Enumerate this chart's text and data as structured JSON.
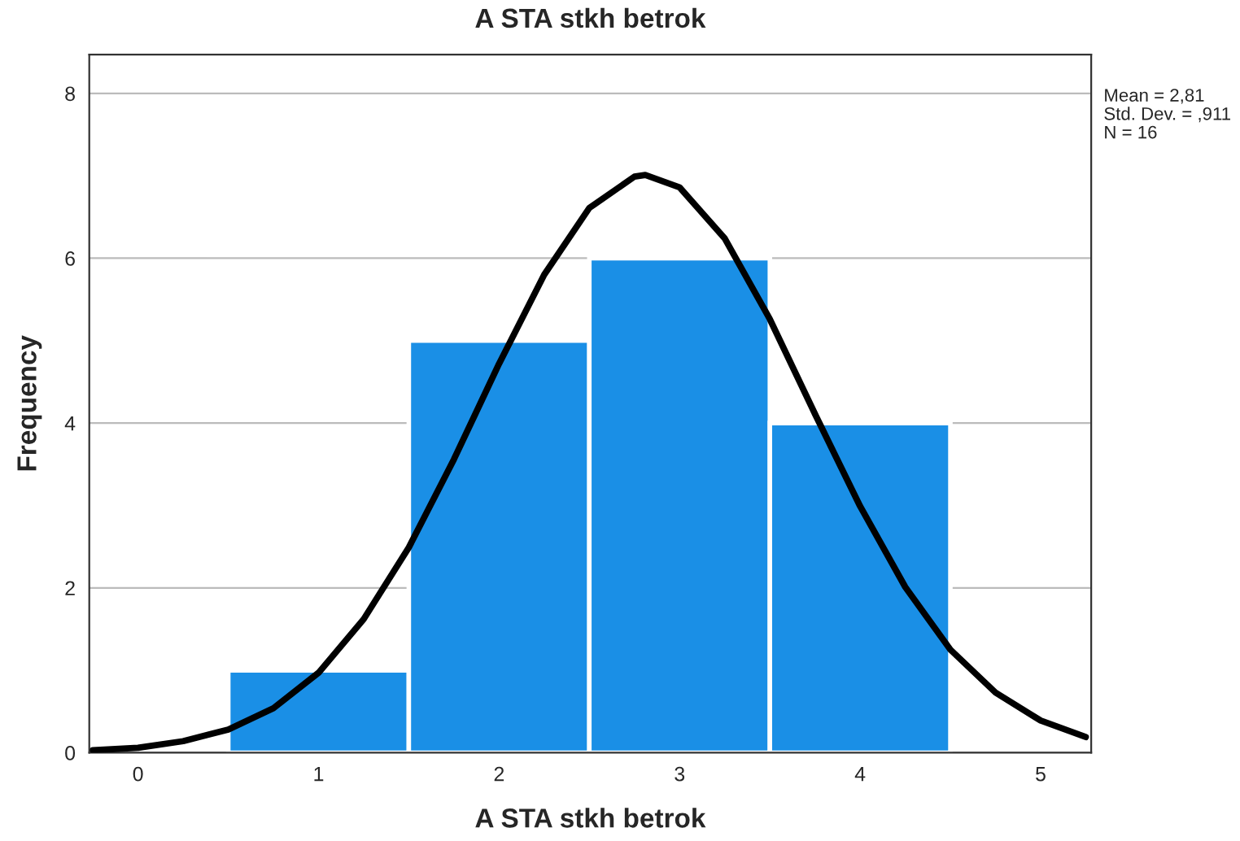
{
  "chart_data": {
    "type": "histogram",
    "title": "A STA stkh betrok",
    "xlabel": "A STA stkh betrok",
    "ylabel": "Frequency",
    "bins": [
      0.5,
      1.5,
      2.5,
      3.5,
      4.5
    ],
    "values": [
      1,
      5,
      6,
      4
    ],
    "color": "#1a8fe6",
    "series": [
      {
        "type": "line",
        "color": "#000000",
        "x": [
          -0.25,
          0,
          0.25,
          0.5,
          0.75,
          1,
          1.25,
          1.5,
          1.75,
          2,
          2.25,
          2.5,
          2.75,
          2.81,
          3,
          3.25,
          3.5,
          3.75,
          4,
          4.25,
          4.5,
          4.75,
          5,
          5.25
        ],
        "values": [
          0.03,
          0.06,
          0.14,
          0.28,
          0.54,
          0.97,
          1.62,
          2.49,
          3.56,
          4.72,
          5.8,
          6.61,
          6.99,
          7.01,
          6.86,
          6.24,
          5.26,
          4.11,
          2.99,
          2.01,
          1.25,
          0.73,
          0.39,
          0.19
        ]
      }
    ],
    "xlim": [
      -0.27,
      5.28
    ],
    "ylim": [
      0,
      8.47
    ],
    "xticks": [
      0,
      1,
      2,
      3,
      4,
      5
    ],
    "yticks": [
      0,
      2,
      4,
      6,
      8
    ],
    "grid": "y",
    "annotations": [
      "Mean = 2,81",
      "Std. Dev. = ,911",
      "N = 16"
    ]
  }
}
